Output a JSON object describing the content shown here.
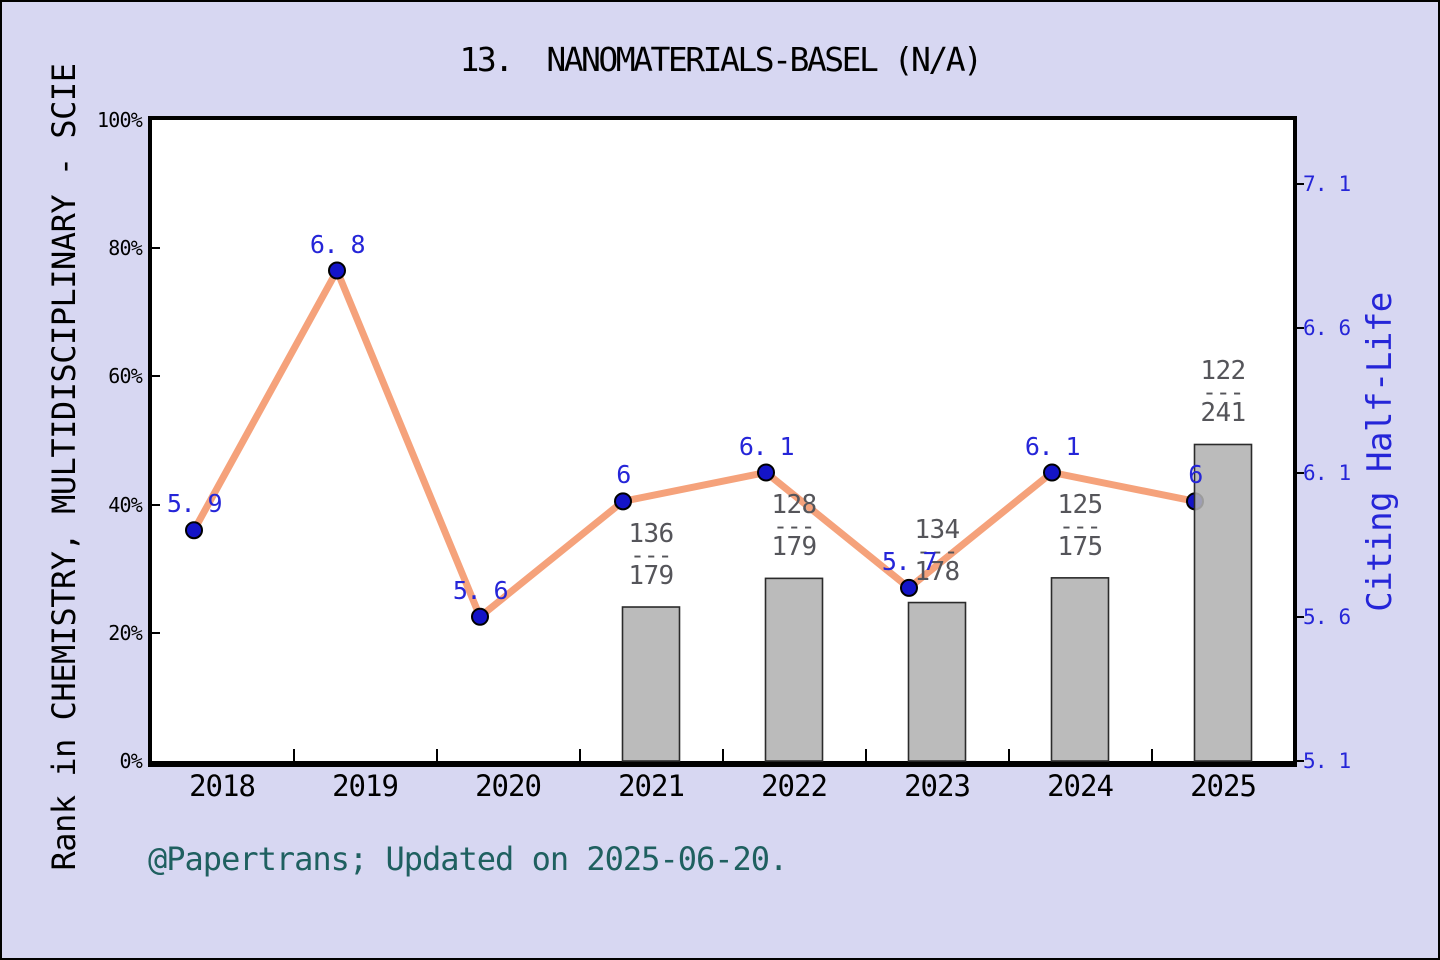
{
  "footer": {
    "text": "@Papertrans; Updated on 2025-06-20."
  },
  "chart_data": {
    "type": "line+bar",
    "title": "13.  NANOMATERIALS-BASEL (N/A)",
    "categories": [
      "2018",
      "2019",
      "2020",
      "2021",
      "2022",
      "2023",
      "2024",
      "2025"
    ],
    "left_axis": {
      "title": "Rank in CHEMISTRY, MULTIDISCIPLINARY - SCIE",
      "tick_labels": [
        "0%",
        "20%",
        "40%",
        "60%",
        "80%",
        "100%"
      ],
      "tick_values": [
        0,
        20,
        40,
        60,
        80,
        100
      ],
      "range": [
        0,
        100
      ],
      "unit": "percent"
    },
    "right_axis": {
      "title": "Citing Half-Life",
      "tick_labels": [
        "5. 1",
        "5. 6",
        "6. 1",
        "6. 6",
        "7. 1"
      ],
      "tick_values": [
        5.1,
        5.6,
        6.1,
        6.6,
        7.1
      ],
      "range_shown": [
        5.1,
        7.33
      ]
    },
    "series": [
      {
        "name": "Citing Half-Life",
        "type": "line",
        "axis": "right",
        "values": [
          5.9,
          6.8,
          5.6,
          6.0,
          6.1,
          5.7,
          6.1,
          6.0
        ],
        "point_labels": [
          "5. 9",
          "6. 8",
          "5. 6",
          "6",
          "6. 1",
          "5. 7",
          "6. 1",
          "6"
        ]
      },
      {
        "name": "Rank in category",
        "type": "bar",
        "axis": "left",
        "fraction_separator": "---",
        "bar_percent_formula": "100 * (1 - numerator/denominator)",
        "fractions": [
          null,
          null,
          null,
          {
            "numerator": 136,
            "denominator": 179
          },
          {
            "numerator": 128,
            "denominator": 179
          },
          {
            "numerator": 134,
            "denominator": 178
          },
          {
            "numerator": 125,
            "denominator": 175
          },
          {
            "numerator": 122,
            "denominator": 241
          }
        ]
      }
    ],
    "legend": "none",
    "grid": false,
    "colors": {
      "background": "#d7d7f2",
      "plot_background": "#ffffff",
      "frame": "#000000",
      "line": "#f5a27b",
      "marker_fill": "#1414c8",
      "marker_edge": "#000000",
      "value_label": "#2525d8",
      "right_axis_text": "#2525d8",
      "axis_text": "#000000",
      "bar_fill": "#b2b2b2",
      "bar_edge": "#2b2b2b",
      "fraction_text": "#55555a",
      "footer_text": "#1f6060"
    }
  }
}
